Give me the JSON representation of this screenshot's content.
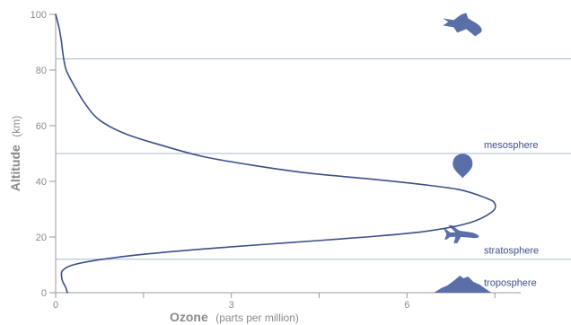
{
  "chart_data": {
    "type": "line",
    "title": "",
    "xlabel": "Ozone",
    "xlabel_unit": "(parts per million)",
    "ylabel": "Altitude",
    "ylabel_unit": "(km)",
    "xlim": [
      0,
      8.8
    ],
    "ylim": [
      0,
      100
    ],
    "xticks": [
      {
        "value": 0,
        "label": "0"
      },
      {
        "value": 3,
        "label": "3"
      },
      {
        "value": 6,
        "label": "6"
      }
    ],
    "xticks_minor": [
      1.5,
      4.5,
      7.5
    ],
    "yticks": [
      {
        "value": 0,
        "label": "0"
      },
      {
        "value": 20,
        "label": "20"
      },
      {
        "value": 40,
        "label": "40"
      },
      {
        "value": 60,
        "label": "60"
      },
      {
        "value": 80,
        "label": "80"
      },
      {
        "value": 100,
        "label": "100"
      }
    ],
    "grid": false,
    "series": [
      {
        "name": "",
        "x": [
          0.2,
          0.17,
          0.12,
          0.1,
          0.12,
          0.3,
          0.8,
          1.6,
          2.7,
          4.0,
          5.3,
          6.3,
          7.05,
          7.45,
          7.5,
          7.35,
          6.9,
          6.2,
          5.3,
          4.3,
          3.3,
          2.5,
          1.8,
          1.2,
          0.75,
          0.5,
          0.3,
          0.18,
          0.13,
          0.1,
          0.06,
          0.0
        ],
        "y": [
          0,
          2,
          4,
          6,
          8,
          10,
          12,
          14,
          16,
          18,
          20,
          22,
          25,
          29,
          32,
          34,
          37,
          39,
          41,
          43,
          46,
          49,
          53,
          57,
          62,
          68,
          75,
          80,
          85,
          90,
          95,
          100
        ],
        "color": "#3d4f8a"
      }
    ],
    "boundaries": [
      {
        "altitude": 12,
        "label": "troposphere"
      },
      {
        "altitude": 50,
        "label": "stratosphere"
      },
      {
        "altitude": 84,
        "label": "mesosphere"
      }
    ],
    "layer_labels": [
      {
        "text": "troposphere",
        "altitude": 2.5
      },
      {
        "text": "stratosphere",
        "altitude": 14
      },
      {
        "text": "mesosphere",
        "altitude": 52
      }
    ],
    "icons": [
      {
        "name": "mountain-icon",
        "x": 6.95,
        "altitude": 0
      },
      {
        "name": "airplane-icon",
        "x": 6.95,
        "altitude": 21
      },
      {
        "name": "balloon-icon",
        "x": 6.95,
        "altitude": 46
      },
      {
        "name": "space-shuttle-icon",
        "x": 6.95,
        "altitude": 96
      }
    ],
    "colors": {
      "curve": "#3d4f8a",
      "boundary": "#a8b8cc",
      "axis": "#9a9a9a",
      "text": "#8a8a8a",
      "icon": "#5a6fa8",
      "layer_text": "#3d4f8a"
    }
  }
}
